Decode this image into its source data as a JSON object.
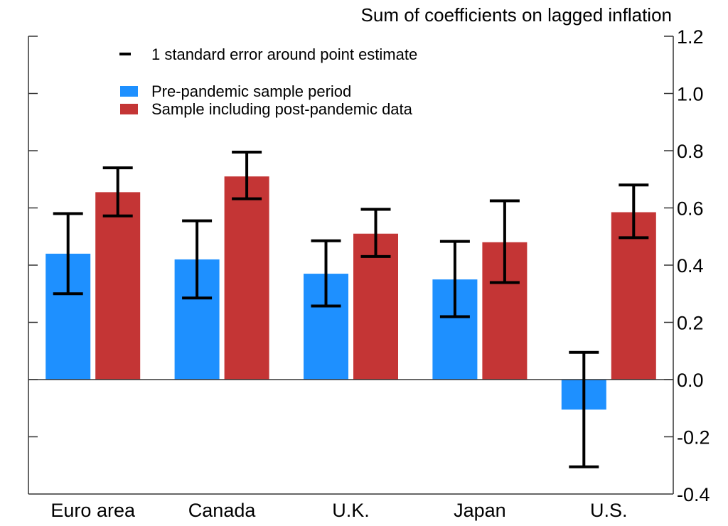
{
  "chart_data": {
    "type": "bar",
    "title": "Sum of coefficients on lagged inflation",
    "xlabel": "",
    "ylabel": "Sum of coefficients on lagged inflation",
    "y_axis_side": "right",
    "ylim": [
      -0.4,
      1.2
    ],
    "yticks": [
      1.2,
      1.0,
      0.8,
      0.6,
      0.4,
      0.2,
      0.0,
      -0.2,
      -0.4
    ],
    "ytick_labels": [
      "1.2",
      "1.0",
      "0.8",
      "0.6",
      "0.4",
      "0.2",
      "0.0",
      "-0.2",
      "-0.4"
    ],
    "grid": false,
    "legend_position": "top-left",
    "categories": [
      "Euro area",
      "Canada",
      "U.K.",
      "Japan",
      "U.S."
    ],
    "series": [
      {
        "name": "Pre-pandemic sample period",
        "color": "#1E90FF",
        "values": [
          0.44,
          0.42,
          0.37,
          0.35,
          -0.105
        ],
        "error_low": [
          0.3,
          0.285,
          0.257,
          0.22,
          -0.305
        ],
        "error_high": [
          0.58,
          0.555,
          0.485,
          0.483,
          0.095
        ]
      },
      {
        "name": "Sample including post-pandemic data",
        "color": "#C43535",
        "values": [
          0.655,
          0.71,
          0.51,
          0.48,
          0.585
        ],
        "error_low": [
          0.572,
          0.632,
          0.43,
          0.339,
          0.496
        ],
        "error_high": [
          0.74,
          0.795,
          0.595,
          0.625,
          0.68
        ]
      }
    ],
    "error_bar_legend": "1 standard error around point estimate",
    "error_bar_color": "#000000"
  }
}
